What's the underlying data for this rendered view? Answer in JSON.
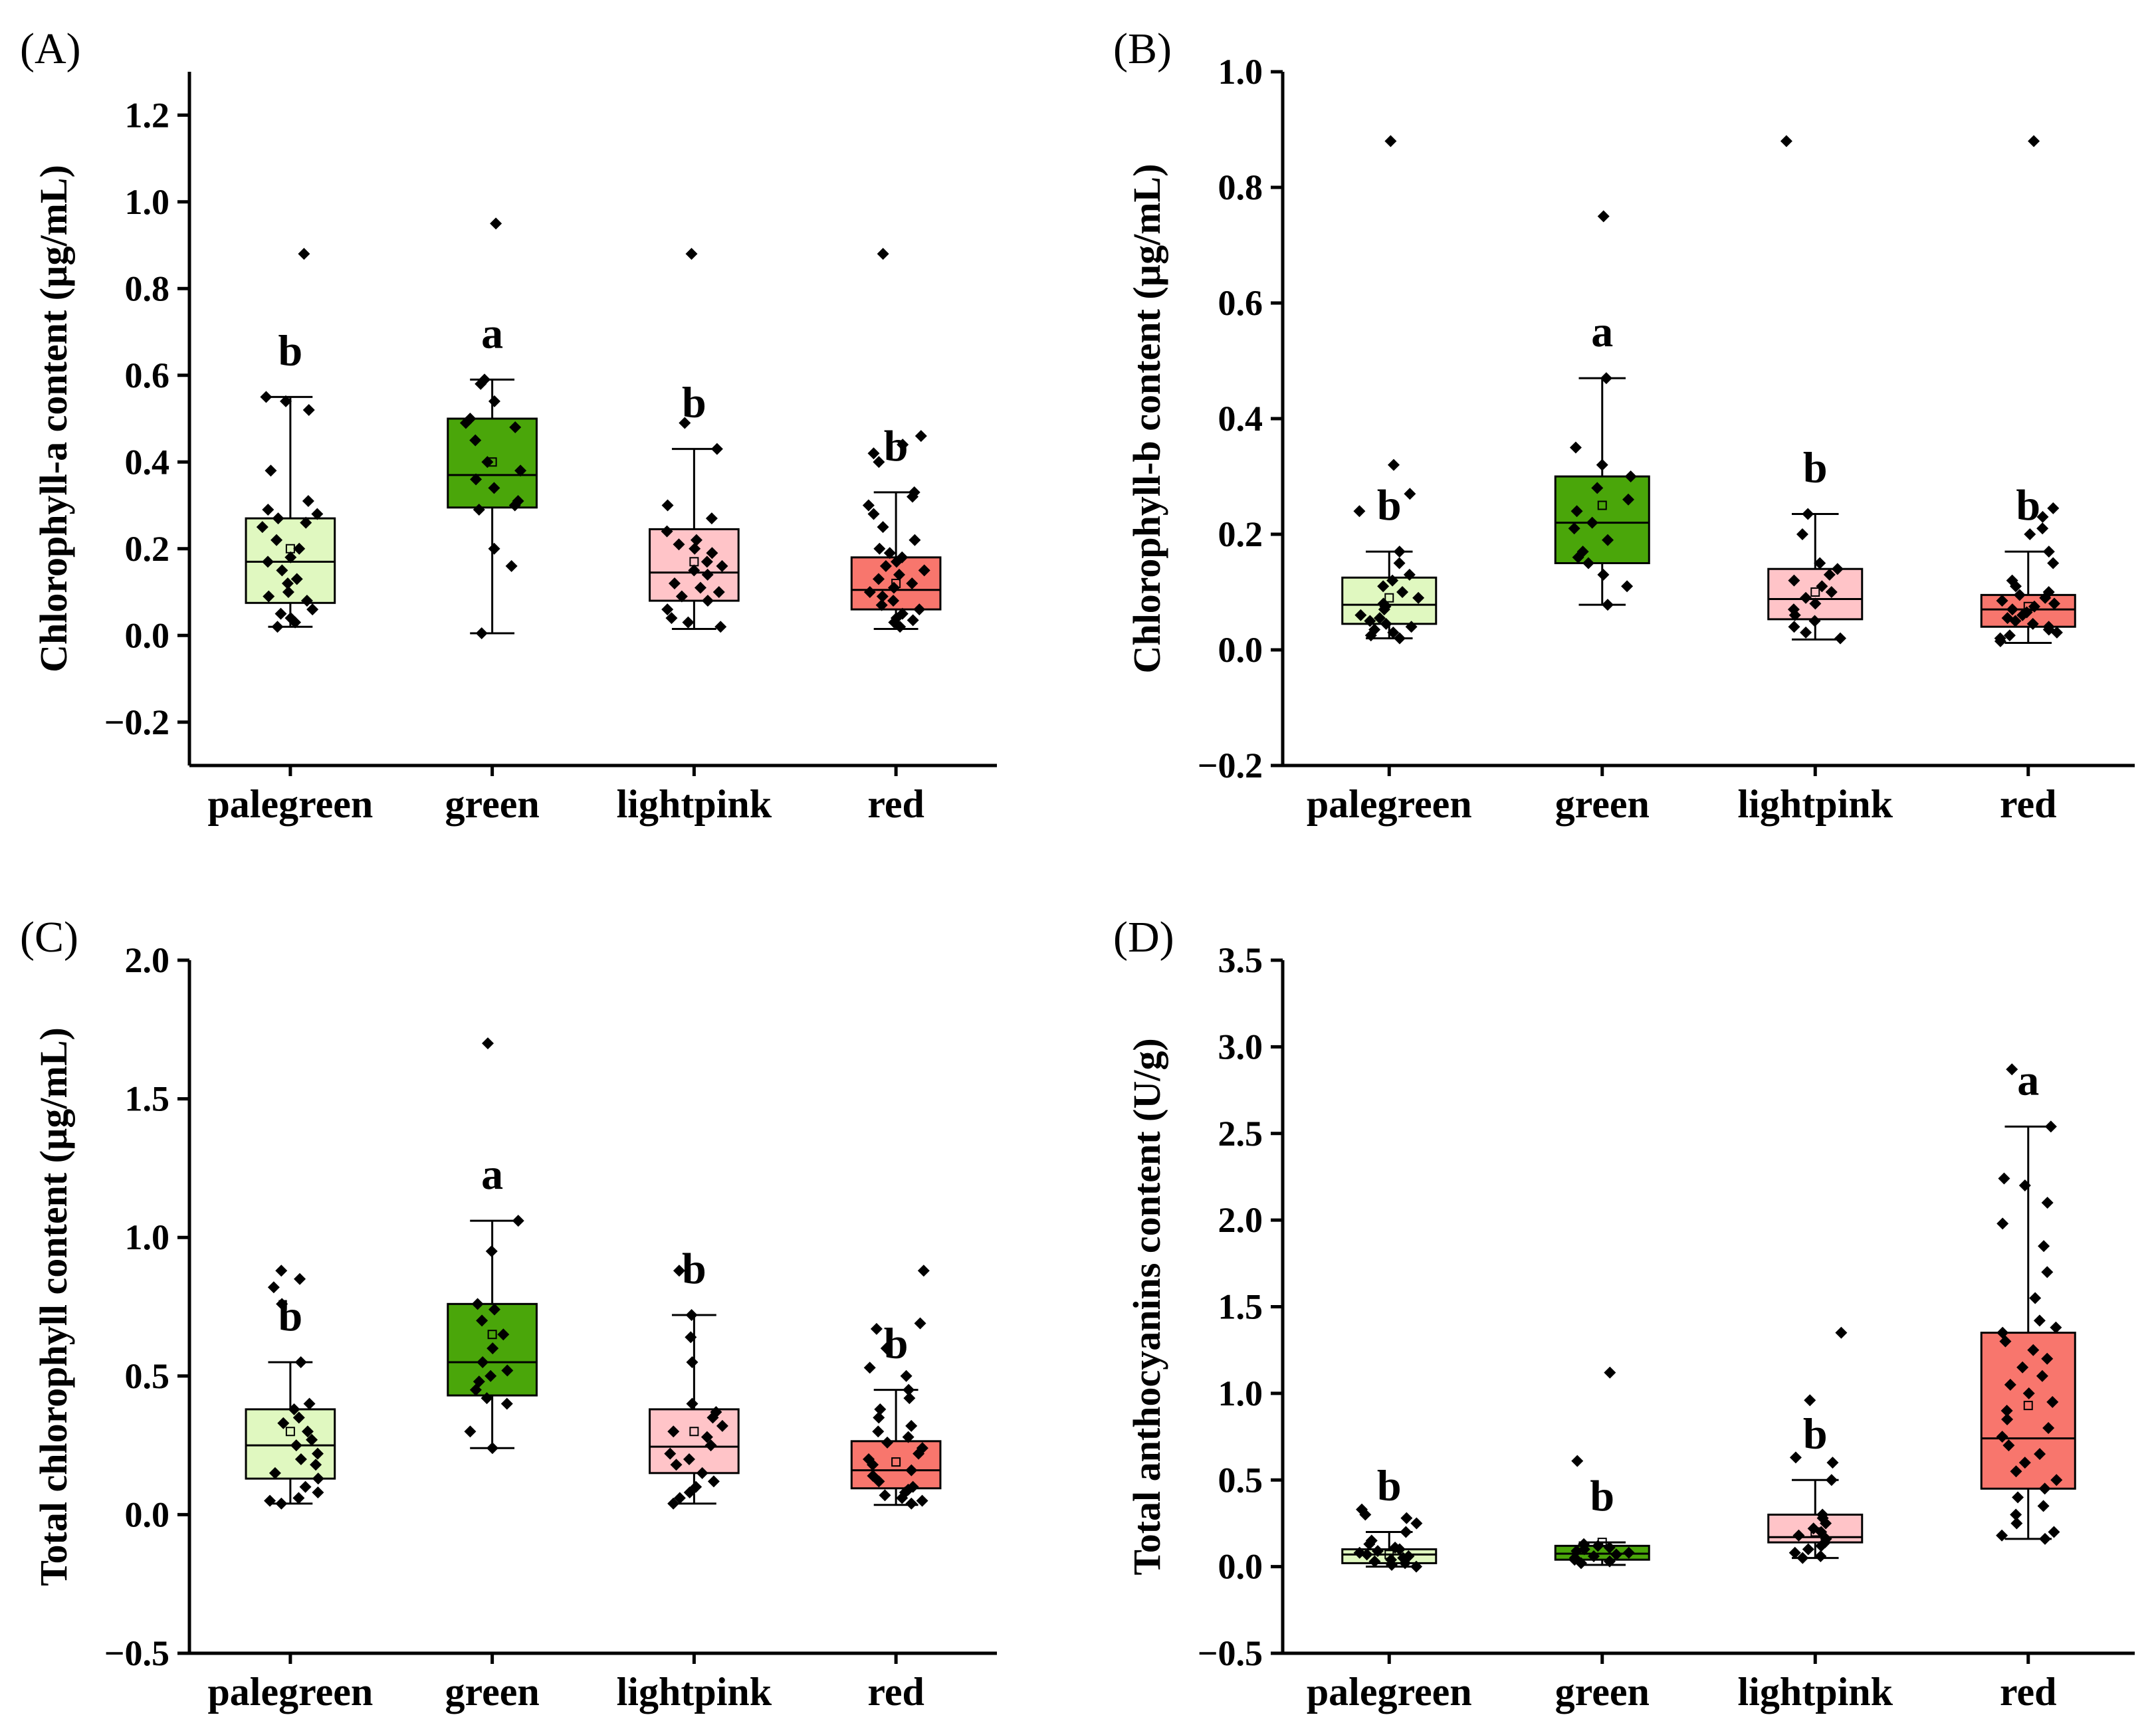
{
  "chart_data": [
    {
      "type": "box",
      "panel": "(A)",
      "ylabel": "Chlorophyll-a content (µg/mL)",
      "ylim": [
        -0.3,
        1.3
      ],
      "yticks": [
        "-0.2",
        "0.0",
        "0.2",
        "0.4",
        "0.6",
        "0.8",
        "1.0",
        "1.2"
      ],
      "yticks_values": [
        -0.2,
        0.0,
        0.2,
        0.4,
        0.6,
        0.8,
        1.0,
        1.2
      ],
      "categories": [
        "palegreen",
        "green",
        "lightpink",
        "red"
      ],
      "boxes": [
        {
          "name": "palegreen",
          "color": "#e0f8c0",
          "q1": 0.075,
          "median": 0.17,
          "q3": 0.27,
          "whisker_low": 0.02,
          "whisker_high": 0.55,
          "mean": 0.2,
          "sig": "b",
          "points": [
            0.88,
            0.55,
            0.54,
            0.52,
            0.38,
            0.31,
            0.29,
            0.28,
            0.27,
            0.26,
            0.25,
            0.22,
            0.2,
            0.18,
            0.17,
            0.15,
            0.13,
            0.12,
            0.1,
            0.09,
            0.08,
            0.06,
            0.05,
            0.04,
            0.03,
            0.02
          ]
        },
        {
          "name": "green",
          "color": "#4aa60a",
          "q1": 0.295,
          "median": 0.37,
          "q3": 0.5,
          "whisker_low": 0.005,
          "whisker_high": 0.59,
          "mean": 0.4,
          "sig": "a",
          "points": [
            0.95,
            0.59,
            0.58,
            0.54,
            0.5,
            0.49,
            0.48,
            0.45,
            0.4,
            0.38,
            0.36,
            0.34,
            0.31,
            0.3,
            0.29,
            0.2,
            0.16,
            0.005
          ]
        },
        {
          "name": "lightpink",
          "color": "#ffc4c8",
          "q1": 0.08,
          "median": 0.145,
          "q3": 0.245,
          "whisker_low": 0.015,
          "whisker_high": 0.43,
          "mean": 0.17,
          "sig": "b",
          "points": [
            0.88,
            0.49,
            0.43,
            0.3,
            0.27,
            0.24,
            0.22,
            0.21,
            0.2,
            0.19,
            0.17,
            0.16,
            0.15,
            0.14,
            0.12,
            0.11,
            0.1,
            0.09,
            0.08,
            0.06,
            0.04,
            0.03,
            0.02
          ]
        },
        {
          "name": "red",
          "color": "#f8766d",
          "q1": 0.06,
          "median": 0.105,
          "q3": 0.18,
          "whisker_low": 0.015,
          "whisker_high": 0.33,
          "mean": 0.12,
          "sig": "b",
          "points": [
            0.88,
            0.46,
            0.44,
            0.42,
            0.4,
            0.33,
            0.32,
            0.3,
            0.28,
            0.25,
            0.22,
            0.2,
            0.19,
            0.18,
            0.17,
            0.16,
            0.15,
            0.14,
            0.13,
            0.12,
            0.11,
            0.1,
            0.09,
            0.08,
            0.07,
            0.06,
            0.05,
            0.04,
            0.035,
            0.03,
            0.02
          ]
        }
      ]
    },
    {
      "type": "box",
      "panel": "(B)",
      "ylabel": "Chlorophyll-b content (µg/mL)",
      "ylim": [
        -0.2,
        1.0
      ],
      "yticks": [
        "-0.2",
        "0.0",
        "0.2",
        "0.4",
        "0.6",
        "0.8",
        "1.0"
      ],
      "yticks_values": [
        -0.2,
        0.0,
        0.2,
        0.4,
        0.6,
        0.8,
        1.0
      ],
      "categories": [
        "palegreen",
        "green",
        "lightpink",
        "red"
      ],
      "boxes": [
        {
          "name": "palegreen",
          "color": "#e0f8c0",
          "q1": 0.045,
          "median": 0.078,
          "q3": 0.125,
          "whisker_low": 0.02,
          "whisker_high": 0.17,
          "mean": 0.09,
          "sig": "b",
          "points": [
            0.88,
            0.32,
            0.27,
            0.24,
            0.17,
            0.15,
            0.13,
            0.12,
            0.11,
            0.1,
            0.09,
            0.08,
            0.075,
            0.07,
            0.06,
            0.055,
            0.05,
            0.045,
            0.04,
            0.035,
            0.03,
            0.025,
            0.02
          ]
        },
        {
          "name": "green",
          "color": "#4aa60a",
          "q1": 0.15,
          "median": 0.22,
          "q3": 0.3,
          "whisker_low": 0.078,
          "whisker_high": 0.47,
          "mean": 0.25,
          "sig": "a",
          "points": [
            0.75,
            0.47,
            0.35,
            0.32,
            0.3,
            0.28,
            0.26,
            0.24,
            0.22,
            0.21,
            0.19,
            0.17,
            0.16,
            0.15,
            0.13,
            0.11,
            0.078
          ]
        },
        {
          "name": "lightpink",
          "color": "#ffc4c8",
          "q1": 0.053,
          "median": 0.088,
          "q3": 0.14,
          "whisker_low": 0.018,
          "whisker_high": 0.235,
          "mean": 0.1,
          "sig": "b",
          "points": [
            0.88,
            0.235,
            0.2,
            0.15,
            0.14,
            0.13,
            0.12,
            0.11,
            0.1,
            0.09,
            0.08,
            0.07,
            0.06,
            0.05,
            0.04,
            0.03,
            0.02
          ]
        },
        {
          "name": "red",
          "color": "#f8766d",
          "q1": 0.04,
          "median": 0.07,
          "q3": 0.095,
          "whisker_low": 0.012,
          "whisker_high": 0.17,
          "mean": 0.075,
          "sig": "b",
          "points": [
            0.88,
            0.245,
            0.23,
            0.21,
            0.2,
            0.17,
            0.15,
            0.12,
            0.11,
            0.1,
            0.095,
            0.09,
            0.085,
            0.08,
            0.075,
            0.07,
            0.065,
            0.06,
            0.055,
            0.05,
            0.045,
            0.04,
            0.035,
            0.03,
            0.025,
            0.02,
            0.015
          ]
        }
      ]
    },
    {
      "type": "box",
      "panel": "(C)",
      "ylabel": "Total chlorophyll content (µg/mL)",
      "ylim": [
        -0.5,
        2.0
      ],
      "yticks": [
        "-0.5",
        "0.0",
        "0.5",
        "1.0",
        "1.5",
        "2.0"
      ],
      "yticks_values": [
        -0.5,
        0.0,
        0.5,
        1.0,
        1.5,
        2.0
      ],
      "categories": [
        "palegreen",
        "green",
        "lightpink",
        "red"
      ],
      "boxes": [
        {
          "name": "palegreen",
          "color": "#e0f8c0",
          "q1": 0.13,
          "median": 0.25,
          "q3": 0.38,
          "whisker_low": 0.04,
          "whisker_high": 0.55,
          "mean": 0.3,
          "sig": "b",
          "points": [
            0.88,
            0.85,
            0.82,
            0.76,
            0.55,
            0.4,
            0.38,
            0.35,
            0.33,
            0.3,
            0.27,
            0.25,
            0.22,
            0.2,
            0.18,
            0.15,
            0.13,
            0.1,
            0.08,
            0.06,
            0.05,
            0.04
          ]
        },
        {
          "name": "green",
          "color": "#4aa60a",
          "q1": 0.43,
          "median": 0.55,
          "q3": 0.76,
          "whisker_low": 0.24,
          "whisker_high": 1.06,
          "mean": 0.65,
          "sig": "a",
          "points": [
            1.7,
            1.06,
            0.95,
            0.76,
            0.74,
            0.7,
            0.65,
            0.6,
            0.55,
            0.52,
            0.5,
            0.48,
            0.45,
            0.42,
            0.4,
            0.3,
            0.24
          ]
        },
        {
          "name": "lightpink",
          "color": "#ffc4c8",
          "q1": 0.15,
          "median": 0.245,
          "q3": 0.38,
          "whisker_low": 0.04,
          "whisker_high": 0.72,
          "mean": 0.3,
          "sig": "b",
          "points": [
            0.88,
            0.72,
            0.64,
            0.55,
            0.4,
            0.37,
            0.35,
            0.32,
            0.3,
            0.28,
            0.25,
            0.22,
            0.2,
            0.18,
            0.15,
            0.12,
            0.1,
            0.08,
            0.06,
            0.04
          ]
        },
        {
          "name": "red",
          "color": "#f8766d",
          "q1": 0.095,
          "median": 0.16,
          "q3": 0.265,
          "whisker_low": 0.035,
          "whisker_high": 0.45,
          "mean": 0.19,
          "sig": "b",
          "points": [
            0.88,
            0.69,
            0.67,
            0.6,
            0.53,
            0.5,
            0.45,
            0.42,
            0.38,
            0.35,
            0.32,
            0.3,
            0.28,
            0.26,
            0.24,
            0.22,
            0.2,
            0.18,
            0.16,
            0.14,
            0.12,
            0.1,
            0.09,
            0.08,
            0.07,
            0.06,
            0.05,
            0.04
          ]
        }
      ]
    },
    {
      "type": "box",
      "panel": "(D)",
      "ylabel": "Total anthocyanins content (U/g)",
      "ylim": [
        -0.5,
        3.5
      ],
      "yticks": [
        "-0.5",
        "0.0",
        "0.5",
        "1.0",
        "1.5",
        "2.0",
        "2.5",
        "3.0",
        "3.5"
      ],
      "yticks_values": [
        -0.5,
        0.0,
        0.5,
        1.0,
        1.5,
        2.0,
        2.5,
        3.0,
        3.5
      ],
      "categories": [
        "palegreen",
        "green",
        "lightpink",
        "red"
      ],
      "boxes": [
        {
          "name": "palegreen",
          "color": "#e0f8c0",
          "q1": 0.02,
          "median": 0.07,
          "q3": 0.1,
          "whisker_low": 0.0,
          "whisker_high": 0.2,
          "mean": 0.07,
          "sig": "b",
          "points": [
            0.33,
            0.3,
            0.28,
            0.25,
            0.2,
            0.15,
            0.13,
            0.11,
            0.1,
            0.09,
            0.08,
            0.07,
            0.06,
            0.05,
            0.04,
            0.03,
            0.02,
            0.01,
            0.0
          ]
        },
        {
          "name": "green",
          "color": "#4aa60a",
          "q1": 0.04,
          "median": 0.075,
          "q3": 0.12,
          "whisker_low": 0.01,
          "whisker_high": 0.14,
          "mean": 0.14,
          "sig": "b",
          "points": [
            1.12,
            0.61,
            0.13,
            0.12,
            0.11,
            0.1,
            0.09,
            0.08,
            0.07,
            0.06,
            0.05,
            0.04,
            0.03,
            0.02
          ]
        },
        {
          "name": "lightpink",
          "color": "#ffc4c8",
          "q1": 0.14,
          "median": 0.17,
          "q3": 0.3,
          "whisker_low": 0.05,
          "whisker_high": 0.5,
          "mean": 0.2,
          "sig": "b",
          "points": [
            1.35,
            0.96,
            0.63,
            0.6,
            0.5,
            0.3,
            0.28,
            0.25,
            0.22,
            0.2,
            0.18,
            0.16,
            0.14,
            0.12,
            0.1,
            0.08,
            0.06,
            0.05
          ]
        },
        {
          "name": "red",
          "color": "#f8766d",
          "q1": 0.45,
          "median": 0.74,
          "q3": 1.35,
          "whisker_low": 0.16,
          "whisker_high": 2.54,
          "mean": 0.93,
          "sig": "a",
          "points": [
            2.87,
            2.54,
            2.24,
            2.2,
            2.1,
            1.98,
            1.85,
            1.7,
            1.55,
            1.42,
            1.38,
            1.35,
            1.3,
            1.25,
            1.2,
            1.15,
            1.1,
            1.05,
            1.0,
            0.95,
            0.9,
            0.85,
            0.8,
            0.75,
            0.7,
            0.65,
            0.6,
            0.55,
            0.5,
            0.45,
            0.4,
            0.35,
            0.3,
            0.25,
            0.2,
            0.18,
            0.16
          ]
        }
      ]
    }
  ]
}
